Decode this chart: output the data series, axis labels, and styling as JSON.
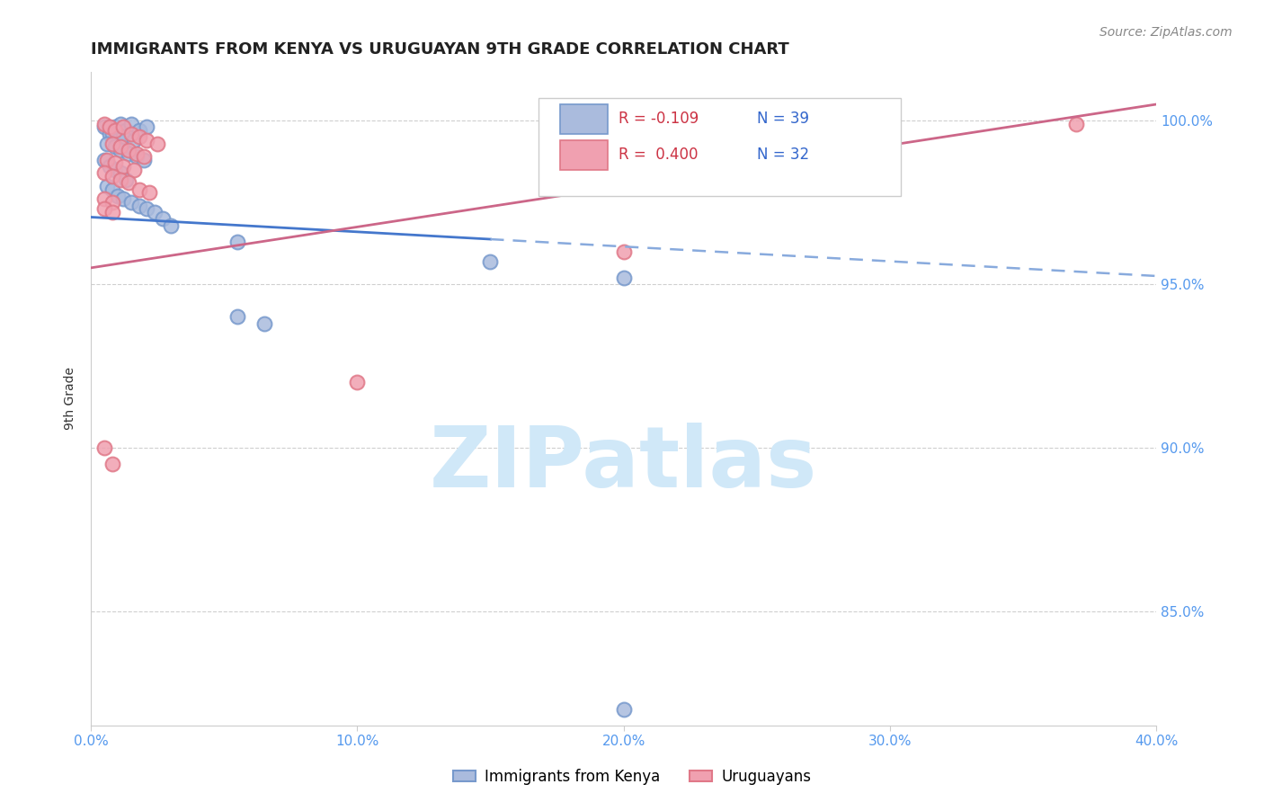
{
  "title": "IMMIGRANTS FROM KENYA VS URUGUAYAN 9TH GRADE CORRELATION CHART",
  "source": "Source: ZipAtlas.com",
  "xlabel_ticks": [
    "0.0%",
    "10.0%",
    "20.0%",
    "30.0%",
    "40.0%"
  ],
  "ylabel_ticks": [
    "85.0%",
    "90.0%",
    "95.0%",
    "100.0%"
  ],
  "xlim": [
    0.0,
    0.4
  ],
  "ylim": [
    0.815,
    1.015
  ],
  "ylabel": "9th Grade",
  "legend_label_blue": "Immigrants from Kenya",
  "legend_label_pink": "Uruguayans",
  "legend_R_blue": "R = -0.109",
  "legend_N_blue": "N = 39",
  "legend_R_pink": "R =  0.400",
  "legend_N_pink": "N = 32",
  "blue_scatter": [
    [
      0.005,
      0.998
    ],
    [
      0.007,
      0.996
    ],
    [
      0.009,
      0.998
    ],
    [
      0.011,
      0.999
    ],
    [
      0.013,
      0.997
    ],
    [
      0.015,
      0.999
    ],
    [
      0.018,
      0.997
    ],
    [
      0.021,
      0.998
    ],
    [
      0.008,
      0.996
    ],
    [
      0.01,
      0.994
    ],
    [
      0.012,
      0.995
    ],
    [
      0.016,
      0.994
    ],
    [
      0.006,
      0.993
    ],
    [
      0.009,
      0.992
    ],
    [
      0.011,
      0.991
    ],
    [
      0.014,
      0.99
    ],
    [
      0.017,
      0.989
    ],
    [
      0.02,
      0.988
    ],
    [
      0.005,
      0.988
    ],
    [
      0.007,
      0.986
    ],
    [
      0.009,
      0.985
    ],
    [
      0.011,
      0.984
    ],
    [
      0.013,
      0.982
    ],
    [
      0.006,
      0.98
    ],
    [
      0.008,
      0.979
    ],
    [
      0.01,
      0.977
    ],
    [
      0.012,
      0.976
    ],
    [
      0.015,
      0.975
    ],
    [
      0.018,
      0.974
    ],
    [
      0.021,
      0.973
    ],
    [
      0.024,
      0.972
    ],
    [
      0.027,
      0.97
    ],
    [
      0.03,
      0.968
    ],
    [
      0.055,
      0.963
    ],
    [
      0.15,
      0.957
    ],
    [
      0.2,
      0.952
    ],
    [
      0.055,
      0.94
    ],
    [
      0.065,
      0.938
    ],
    [
      0.2,
      0.82
    ]
  ],
  "pink_scatter": [
    [
      0.005,
      0.999
    ],
    [
      0.007,
      0.998
    ],
    [
      0.009,
      0.997
    ],
    [
      0.012,
      0.998
    ],
    [
      0.015,
      0.996
    ],
    [
      0.018,
      0.995
    ],
    [
      0.021,
      0.994
    ],
    [
      0.025,
      0.993
    ],
    [
      0.008,
      0.993
    ],
    [
      0.011,
      0.992
    ],
    [
      0.014,
      0.991
    ],
    [
      0.017,
      0.99
    ],
    [
      0.02,
      0.989
    ],
    [
      0.006,
      0.988
    ],
    [
      0.009,
      0.987
    ],
    [
      0.012,
      0.986
    ],
    [
      0.016,
      0.985
    ],
    [
      0.005,
      0.984
    ],
    [
      0.008,
      0.983
    ],
    [
      0.011,
      0.982
    ],
    [
      0.014,
      0.981
    ],
    [
      0.018,
      0.979
    ],
    [
      0.022,
      0.978
    ],
    [
      0.005,
      0.976
    ],
    [
      0.008,
      0.975
    ],
    [
      0.005,
      0.973
    ],
    [
      0.008,
      0.972
    ],
    [
      0.1,
      0.92
    ],
    [
      0.005,
      0.9
    ],
    [
      0.008,
      0.895
    ],
    [
      0.2,
      0.96
    ],
    [
      0.37,
      0.999
    ]
  ],
  "blue_line": {
    "x0": 0.0,
    "y0": 0.9705,
    "x1": 0.4,
    "y1": 0.9525,
    "solid_end": 0.15
  },
  "pink_line": {
    "x0": 0.0,
    "y0": 0.955,
    "x1": 0.4,
    "y1": 1.005
  },
  "dot_size": 130,
  "blue_fill": "#aabbdd",
  "blue_edge": "#7799cc",
  "pink_fill": "#f0a0b0",
  "pink_edge": "#e07888",
  "bg_color": "#ffffff",
  "grid_color": "#bbbbbb",
  "watermark_color": "#d0e8f8",
  "title_fontsize": 13,
  "axis_label_fontsize": 10,
  "tick_fontsize": 11,
  "source_fontsize": 10
}
